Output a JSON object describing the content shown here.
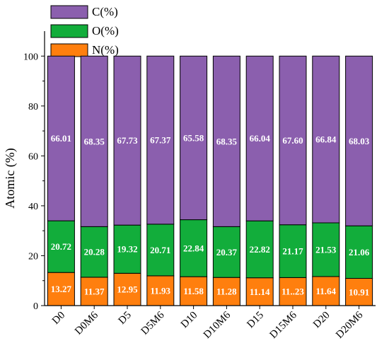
{
  "chart_data": {
    "type": "bar",
    "stacked": true,
    "categories": [
      "D0",
      "D0M6",
      "D5",
      "D5M6",
      "D10",
      "D10M6",
      "D15",
      "D15M6",
      "D20",
      "D20M6"
    ],
    "series": [
      {
        "name": "N(%)",
        "color": "#ff7f0e",
        "values": [
          13.27,
          11.37,
          12.95,
          11.93,
          11.58,
          11.28,
          11.14,
          11.23,
          11.64,
          10.91
        ],
        "labels": [
          "13.27",
          "11.37",
          "12.95",
          "11.93",
          "11.58",
          "11.28",
          "11.14",
          "11..23",
          "11.64",
          "10.91"
        ]
      },
      {
        "name": "O(%)",
        "color": "#12ad3b",
        "values": [
          20.72,
          20.28,
          19.32,
          20.71,
          22.84,
          20.37,
          22.82,
          21.17,
          21.53,
          21.06
        ],
        "labels": [
          "20.72",
          "20.28",
          "19.32",
          "20.71",
          "22.84",
          "20.37",
          "22.82",
          "21.17",
          "21.53",
          "21.06"
        ]
      },
      {
        "name": "C(%)",
        "color": "#8b5fae",
        "values": [
          66.01,
          68.35,
          67.73,
          67.37,
          65.58,
          68.35,
          66.04,
          67.6,
          66.84,
          68.03
        ],
        "labels": [
          "66.01",
          "68.35",
          "67.73",
          "67.37",
          "65.58",
          "68.35",
          "66.04",
          "67.60",
          "66.84",
          "68.03"
        ]
      }
    ],
    "legend_order": [
      "C(%)",
      "O(%)",
      "N(%)"
    ],
    "legend_position": "top-left",
    "xlabel": "",
    "ylabel": "Atomic (%)",
    "ylim": [
      0,
      110
    ],
    "yticks": [
      "0",
      "20",
      "40",
      "60",
      "80",
      "100"
    ],
    "ytick_values": [
      0,
      20,
      40,
      60,
      80,
      100
    ],
    "grid": false
  }
}
